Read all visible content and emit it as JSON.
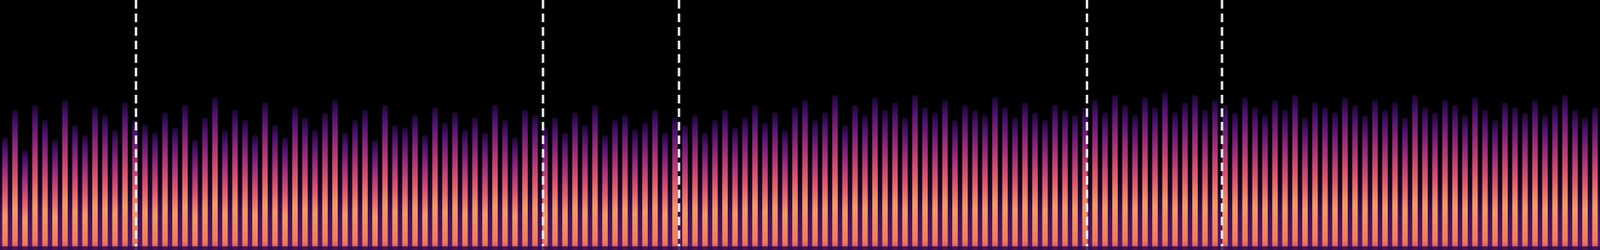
{
  "chart_data": {
    "type": "spectrogram",
    "tick_labels": false,
    "xlim": [
      -0.5,
      159.5
    ],
    "ylim": [
      0,
      100
    ],
    "x": [
      0,
      1,
      2,
      3,
      4,
      5,
      6,
      7,
      8,
      9,
      10,
      11,
      12,
      13,
      14,
      15,
      16,
      17,
      18,
      19,
      20,
      21,
      22,
      23,
      24,
      25,
      26,
      27,
      28,
      29,
      30,
      31,
      32,
      33,
      34,
      35,
      36,
      37,
      38,
      39,
      40,
      41,
      42,
      43,
      44,
      45,
      46,
      47,
      48,
      49,
      50,
      51,
      52,
      53,
      54,
      55,
      56,
      57,
      58,
      59,
      60,
      61,
      62,
      63,
      64,
      65,
      66,
      67,
      68,
      69,
      70,
      71,
      72,
      73,
      74,
      75,
      76,
      77,
      78,
      79,
      80,
      81,
      82,
      83,
      84,
      85,
      86,
      87,
      88,
      89,
      90,
      91,
      92,
      93,
      94,
      95,
      96,
      97,
      98,
      99,
      100,
      101,
      102,
      103,
      104,
      105,
      106,
      107,
      108,
      109,
      110,
      111,
      112,
      113,
      114,
      115,
      116,
      117,
      118,
      119,
      120,
      121,
      122,
      123,
      124,
      125,
      126,
      127,
      128,
      129,
      130,
      131,
      132,
      133,
      134,
      135,
      136,
      137,
      138,
      139,
      140,
      141,
      142,
      143,
      144,
      145,
      146,
      147,
      148,
      149,
      150,
      151,
      152,
      153,
      154,
      155,
      156,
      157,
      158,
      159
    ],
    "values": [
      45,
      56,
      40,
      58,
      52,
      44,
      60,
      50,
      46,
      57,
      54,
      48,
      59,
      52,
      50,
      47,
      55,
      49,
      58,
      44,
      53,
      61,
      48,
      56,
      52,
      46,
      59,
      50,
      45,
      57,
      53,
      48,
      55,
      60,
      47,
      52,
      56,
      44,
      58,
      50,
      49,
      54,
      46,
      57,
      51,
      55,
      48,
      53,
      47,
      58,
      52,
      45,
      56,
      54,
      49,
      53,
      47,
      55,
      50,
      58,
      46,
      52,
      54,
      48,
      51,
      56,
      47,
      53,
      50,
      54,
      47,
      52,
      56,
      49,
      53,
      58,
      51,
      55,
      48,
      57,
      60,
      52,
      55,
      62,
      50,
      58,
      54,
      61,
      56,
      59,
      53,
      62,
      57,
      55,
      60,
      52,
      58,
      56,
      54,
      61,
      57,
      53,
      59,
      55,
      52,
      58,
      56,
      54,
      57,
      60,
      55,
      62,
      58,
      54,
      61,
      57,
      63,
      55,
      59,
      62,
      56,
      60,
      58,
      55,
      61,
      57,
      54,
      60,
      56,
      62,
      53,
      59,
      57,
      55,
      61,
      58,
      54,
      60,
      56,
      59,
      53,
      62,
      57,
      55,
      60,
      58,
      54,
      61,
      56,
      52,
      59,
      57,
      55,
      60,
      54,
      58,
      62,
      56,
      53,
      57
    ],
    "vlines": [
      13.1,
      53.8,
      67.4,
      108.2,
      121.7
    ]
  }
}
